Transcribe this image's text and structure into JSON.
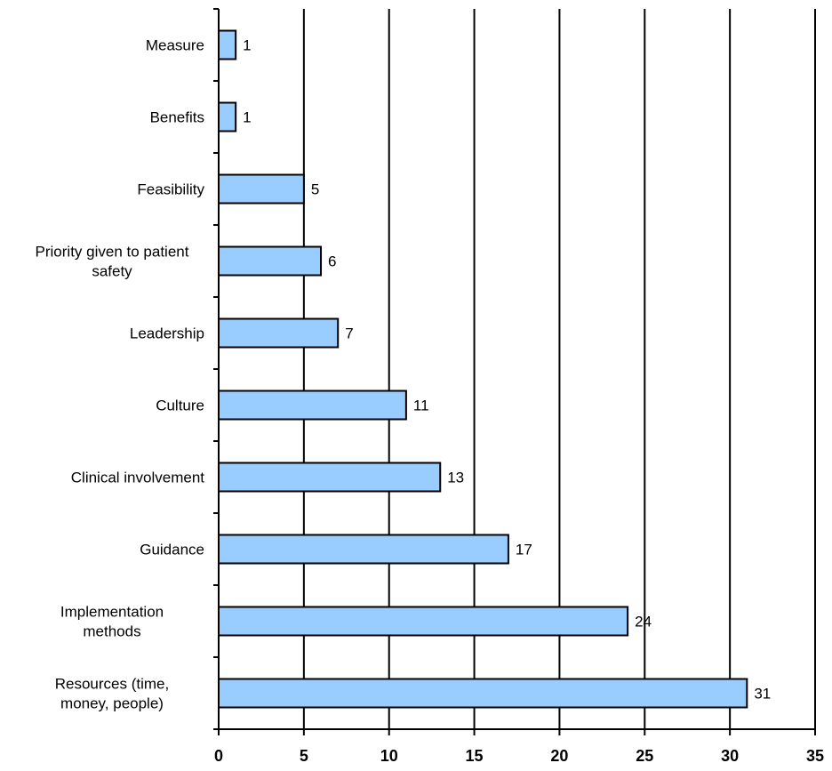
{
  "chart_data": {
    "type": "bar",
    "orientation": "horizontal",
    "categories": [
      [
        "Measure"
      ],
      [
        "Benefits"
      ],
      [
        "Feasibility"
      ],
      [
        "Priority given to patient",
        "safety"
      ],
      [
        "Leadership"
      ],
      [
        "Culture"
      ],
      [
        "Clinical involvement"
      ],
      [
        "Guidance"
      ],
      [
        "Implementation",
        "methods"
      ],
      [
        "Resources (time,",
        "money, people)"
      ]
    ],
    "values": [
      1,
      1,
      5,
      6,
      7,
      11,
      13,
      17,
      24,
      31
    ],
    "data_labels": [
      "1",
      "1",
      "5",
      "6",
      "7",
      "11",
      "13",
      "17",
      "24",
      "31"
    ],
    "xlim": [
      0,
      35
    ],
    "xticks": [
      0,
      5,
      10,
      15,
      20,
      25,
      30,
      35
    ],
    "xtick_labels": [
      "0",
      "5",
      "10",
      "15",
      "20",
      "25",
      "30",
      "35"
    ],
    "grid": "vertical",
    "bar_color": "#99CCFF",
    "bar_edge_color": "#000000",
    "title": "",
    "xlabel": "",
    "ylabel": ""
  }
}
